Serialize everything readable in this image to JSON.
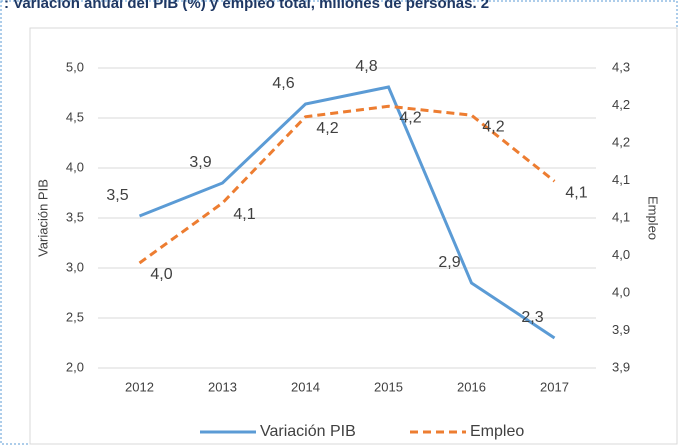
{
  "chart_data": {
    "type": "line",
    "title": ": Variación anual del PIB (%) y empleo total, millones de personas. 2",
    "y_label": "Variación PIB",
    "y2_label": "Empleo",
    "categories": [
      "2012",
      "2013",
      "2014",
      "2015",
      "2016",
      "2017"
    ],
    "series": [
      {
        "name": "Variación PIB",
        "color": "#5b9bd5",
        "values": [
          3.52,
          3.85,
          4.64,
          4.81,
          2.85,
          2.3
        ],
        "value_labels": [
          "3,5",
          "3,9",
          "4,6",
          "4,8",
          "2,9",
          "2,3"
        ]
      },
      {
        "name": "Empleo",
        "color": "#ed7d31",
        "axis": "y2",
        "dashed": true,
        "values": [
          4.04,
          4.12,
          4.235,
          4.249,
          4.237,
          4.149
        ],
        "value_labels": [
          "4,0",
          "4,1",
          "4,2",
          "4,2",
          "4,2",
          "4,1"
        ]
      }
    ],
    "ylim": [
      2,
      5
    ],
    "yticks": [
      {
        "value": 2,
        "label": "2,0"
      },
      {
        "value": 2.5,
        "label": "2,5"
      },
      {
        "value": 3,
        "label": "3,0"
      },
      {
        "value": 3.5,
        "label": "3,5"
      },
      {
        "value": 4,
        "label": "4,0"
      },
      {
        "value": 4.5,
        "label": "4,5"
      },
      {
        "value": 5,
        "label": "5,0"
      }
    ],
    "y2lim": [
      3.9,
      4.3
    ],
    "y2ticks": [
      {
        "value": 3.9,
        "label": "3,9"
      },
      {
        "value": 3.95,
        "label": "3,9"
      },
      {
        "value": 4,
        "label": "4,0"
      },
      {
        "value": 4.05,
        "label": "4,0"
      },
      {
        "value": 4.1,
        "label": "4,1"
      },
      {
        "value": 4.15,
        "label": "4,1"
      },
      {
        "value": 4.2,
        "label": "4,2"
      },
      {
        "value": 4.25,
        "label": "4,2"
      },
      {
        "value": 4.3,
        "label": "4,3"
      }
    ],
    "grid": true,
    "legend": "bottom"
  }
}
